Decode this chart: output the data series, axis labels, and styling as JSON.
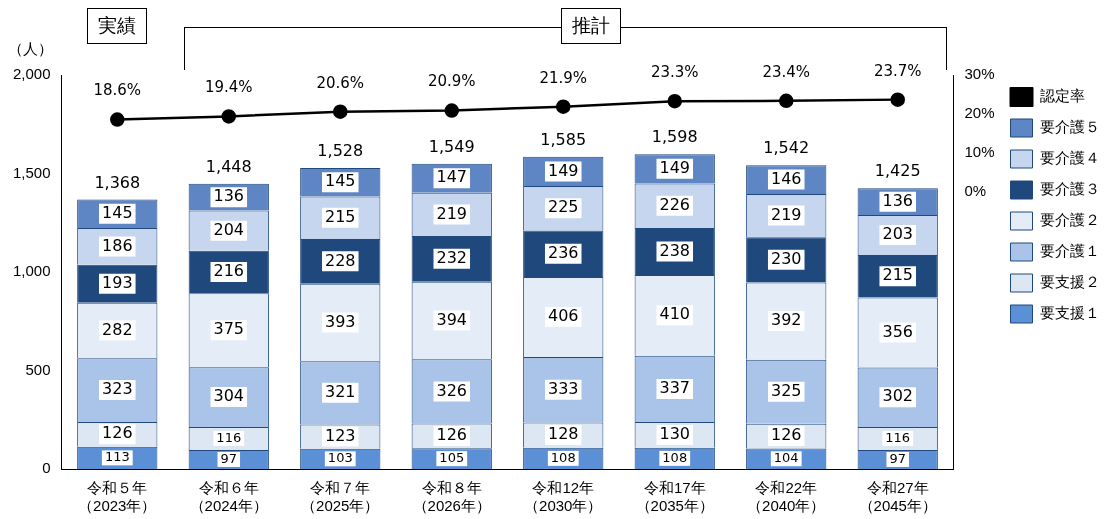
{
  "chart_data": {
    "type": "bar",
    "stacked": true,
    "ylabel": "（人）",
    "categories": [
      "令和５年（2023年）",
      "令和６年（2024年）",
      "令和７年（2025年）",
      "令和８年（2026年）",
      "令和12年（2030年）",
      "令和17年（2035年）",
      "令和22年（2040年）",
      "令和27年（2045年）"
    ],
    "series": [
      {
        "name": "要支援１",
        "color": "#5b8fd6",
        "values": [
          113,
          97,
          103,
          105,
          108,
          108,
          104,
          97
        ]
      },
      {
        "name": "要支援２",
        "color": "#dde7f3",
        "values": [
          126,
          116,
          123,
          126,
          128,
          130,
          126,
          116
        ]
      },
      {
        "name": "要介護１",
        "color": "#a9c4e8",
        "values": [
          323,
          304,
          321,
          326,
          333,
          337,
          325,
          302
        ]
      },
      {
        "name": "要介護２",
        "color": "#e4ecf8",
        "values": [
          282,
          375,
          393,
          394,
          406,
          410,
          392,
          356
        ]
      },
      {
        "name": "要介護３",
        "color": "#1f497d",
        "values": [
          193,
          216,
          228,
          232,
          236,
          238,
          230,
          215
        ]
      },
      {
        "name": "要介護４",
        "color": "#c5d6ee",
        "values": [
          186,
          204,
          215,
          219,
          225,
          226,
          219,
          203
        ]
      },
      {
        "name": "要介護５",
        "color": "#5f86c4",
        "values": [
          145,
          136,
          145,
          147,
          149,
          149,
          146,
          136
        ]
      },
      {
        "name": "認定率",
        "type": "line",
        "axis": "y2",
        "color": "#000000",
        "values": [
          18.6,
          19.4,
          20.6,
          20.9,
          21.9,
          23.3,
          23.4,
          23.7
        ],
        "value_labels": [
          "18.6%",
          "19.4%",
          "20.6%",
          "20.9%",
          "21.9%",
          "23.3%",
          "23.4%",
          "23.7%"
        ]
      }
    ],
    "totals": [
      "1,368",
      "1,448",
      "1,528",
      "1,549",
      "1,585",
      "1,598",
      "1,542",
      "1,425"
    ],
    "data_labels": true,
    "marker": "circle",
    "legend": "right",
    "ylim": [
      0,
      2000
    ],
    "yticks": [
      {
        "value": 0,
        "label": "0"
      },
      {
        "value": 500,
        "label": "500"
      },
      {
        "value": 1000,
        "label": "1,000"
      },
      {
        "value": 1500,
        "label": "1,500"
      },
      {
        "value": 2000,
        "label": "2,000"
      }
    ],
    "y2lim": [
      -70.8,
      30
    ],
    "y2ticks": [
      {
        "value": 0,
        "label": "0%"
      },
      {
        "value": 10,
        "label": "10%"
      },
      {
        "value": 20,
        "label": "20%"
      },
      {
        "value": 30,
        "label": "30%"
      }
    ],
    "annotations": [
      "実績",
      "推計"
    ]
  }
}
